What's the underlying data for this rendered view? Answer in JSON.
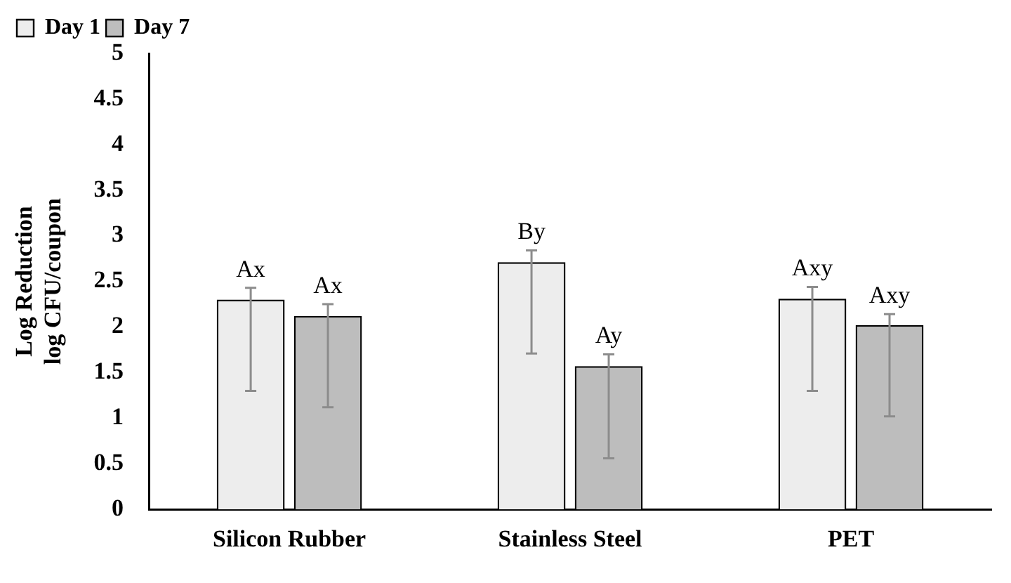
{
  "chart_data": {
    "type": "bar",
    "ylabel": "Log Reduction\nlog CFU/coupon",
    "categories": [
      "Silicon Rubber",
      "Stainless Steel",
      "PET"
    ],
    "series": [
      {
        "name": "Day 1",
        "color": "#ededed",
        "values": [
          2.3,
          2.71,
          2.31
        ],
        "errors": [
          [
            1.3,
            2.43
          ],
          [
            1.71,
            2.84
          ],
          [
            1.3,
            2.44
          ]
        ],
        "value_labels": [
          "Ax",
          "By",
          "Axy"
        ]
      },
      {
        "name": "Day 7",
        "color": "#bdbdbd",
        "values": [
          2.12,
          1.57,
          2.02
        ],
        "errors": [
          [
            1.12,
            2.25
          ],
          [
            0.56,
            1.7
          ],
          [
            1.02,
            2.14
          ]
        ],
        "value_labels": [
          "Ax",
          "Ay",
          "Axy"
        ]
      }
    ],
    "ylim": [
      0,
      5
    ],
    "yticks": [
      0,
      0.5,
      1,
      1.5,
      2,
      2.5,
      3,
      3.5,
      4,
      4.5,
      5
    ],
    "grid": false,
    "legend": "top left"
  }
}
